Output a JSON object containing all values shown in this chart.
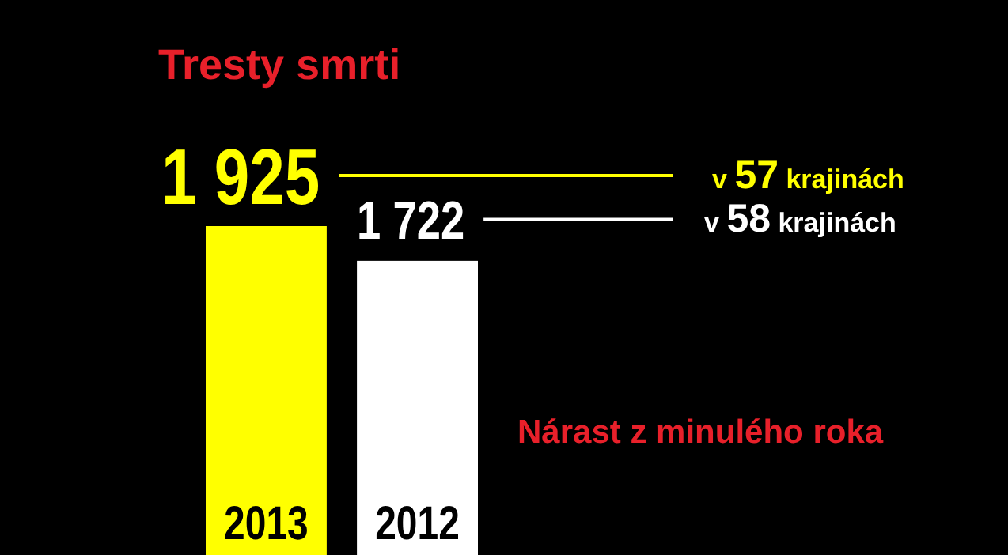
{
  "chart_data": {
    "type": "bar",
    "title": "Tresty smrti",
    "categories": [
      "2013",
      "2012"
    ],
    "values": [
      1925,
      1722
    ],
    "colors": [
      "#ffff00",
      "#ffffff"
    ],
    "value_labels": [
      "1 925",
      "1 722"
    ],
    "annotations": [
      "v 57 krajinách",
      "v 58 krajinách",
      "Nárast z minulého roka"
    ]
  }
}
